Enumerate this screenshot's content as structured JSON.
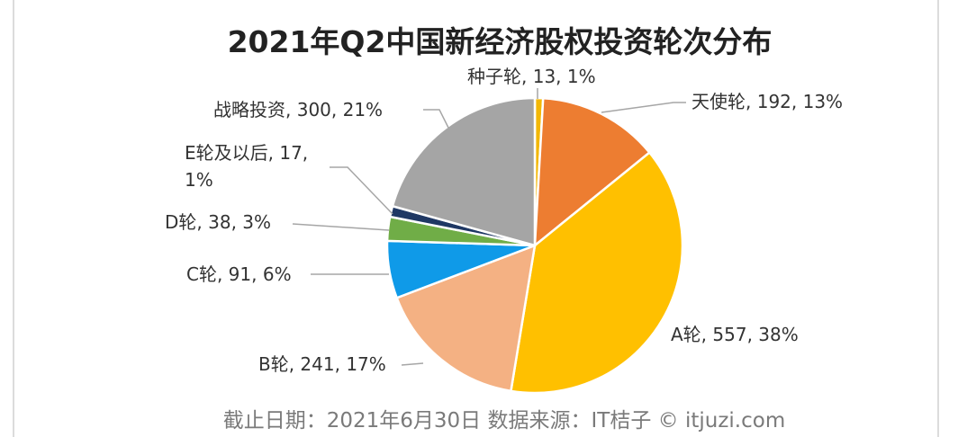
{
  "chart_data": {
    "type": "pie",
    "title": "2021年Q2中国新经济股权投资轮次分布",
    "source": "截止日期：2021年6月30日   数据来源：IT桔子 © itjuzi.com",
    "values": [
      13,
      192,
      557,
      241,
      91,
      38,
      17,
      300
    ],
    "value_labels": [
      "种子轮, 13, 1%",
      "天使轮, 192, 13%",
      "A轮, 557, 38%",
      "B轮, 241, 17%",
      "C轮, 91, 6%",
      "D轮, 38, 3%",
      "E轮及以后, 17, 1%",
      "战略投资, 300, 21%"
    ],
    "colors": [
      "#f2b705",
      "#ed7d31",
      "#ffc000",
      "#f4b183",
      "#0f9ae8",
      "#70ad47",
      "#1f3864",
      "#a5a5a5"
    ]
  }
}
